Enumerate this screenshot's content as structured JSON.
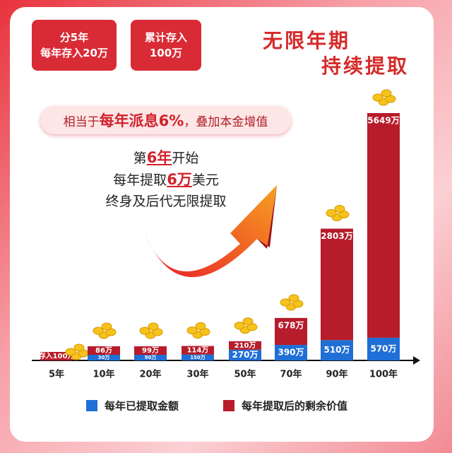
{
  "header": {
    "boxes": [
      [
        "分5年",
        "每年存入20万"
      ],
      [
        "累计存入",
        "100万"
      ]
    ],
    "title": [
      "无限年期",
      "持续提取"
    ]
  },
  "pill": [
    "相当于",
    "每年派息6%",
    "，叠加本金增值"
  ],
  "callout": [
    [
      "第",
      "6年",
      "开始"
    ],
    [
      "每年提取",
      "6万",
      "美元"
    ],
    [
      "终身及后代无限提取"
    ]
  ],
  "chart_data": {
    "type": "bar",
    "stacked": true,
    "categories": [
      "5年",
      "10年",
      "20年",
      "30年",
      "50年",
      "70年",
      "90年",
      "100年"
    ],
    "series": [
      {
        "name": "每年已提取金额",
        "color": "#1f6fd6",
        "values": [
          null,
          30,
          90,
          150,
          270,
          390,
          510,
          570
        ],
        "value_labels": [
          null,
          "30万",
          "90万",
          "150万",
          "270万",
          "390万",
          "510万",
          "570万"
        ]
      },
      {
        "name": "每年提取后的剩余价值",
        "color": "#b71c2a",
        "values": [
          100,
          86,
          99,
          114,
          210,
          678,
          2803,
          5649
        ],
        "value_labels": [
          "存入100万",
          "86万",
          "99万",
          "114万",
          "210万",
          "678万",
          "2803万",
          "5649万"
        ]
      }
    ]
  }
}
